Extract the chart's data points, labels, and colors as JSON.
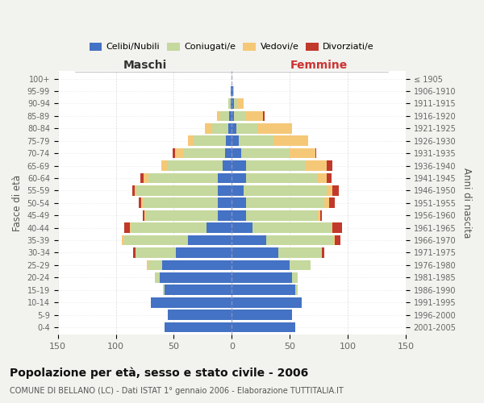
{
  "age_groups": [
    "0-4",
    "5-9",
    "10-14",
    "15-19",
    "20-24",
    "25-29",
    "30-34",
    "35-39",
    "40-44",
    "45-49",
    "50-54",
    "55-59",
    "60-64",
    "65-69",
    "70-74",
    "75-79",
    "80-84",
    "85-89",
    "90-94",
    "95-99",
    "100+"
  ],
  "birth_years": [
    "2001-2005",
    "1996-2000",
    "1991-1995",
    "1986-1990",
    "1981-1985",
    "1976-1980",
    "1971-1975",
    "1966-1970",
    "1961-1965",
    "1956-1960",
    "1951-1955",
    "1946-1950",
    "1941-1945",
    "1936-1940",
    "1931-1935",
    "1926-1930",
    "1921-1925",
    "1916-1920",
    "1911-1915",
    "1906-1910",
    "≤ 1905"
  ],
  "male": {
    "celibe": [
      58,
      55,
      70,
      58,
      62,
      60,
      48,
      38,
      22,
      12,
      12,
      12,
      12,
      8,
      6,
      5,
      3,
      2,
      1,
      1,
      0
    ],
    "coniugato": [
      0,
      0,
      0,
      1,
      4,
      12,
      35,
      55,
      65,
      62,
      65,
      70,
      60,
      48,
      35,
      28,
      14,
      8,
      2,
      0,
      0
    ],
    "vedovo": [
      0,
      0,
      0,
      0,
      0,
      1,
      0,
      2,
      1,
      1,
      1,
      2,
      4,
      5,
      8,
      5,
      6,
      3,
      0,
      0,
      0
    ],
    "divorziato": [
      0,
      0,
      0,
      0,
      0,
      0,
      2,
      0,
      5,
      2,
      2,
      2,
      3,
      0,
      2,
      0,
      0,
      0,
      0,
      0,
      0
    ]
  },
  "female": {
    "nubile": [
      55,
      52,
      60,
      55,
      52,
      50,
      40,
      30,
      18,
      12,
      12,
      10,
      12,
      12,
      8,
      6,
      4,
      2,
      2,
      1,
      0
    ],
    "coniugata": [
      0,
      0,
      0,
      2,
      5,
      18,
      38,
      58,
      68,
      62,
      68,
      72,
      62,
      52,
      42,
      30,
      18,
      10,
      3,
      0,
      0
    ],
    "vedova": [
      0,
      0,
      0,
      0,
      0,
      0,
      0,
      1,
      1,
      2,
      4,
      5,
      8,
      18,
      22,
      30,
      30,
      15,
      5,
      1,
      0
    ],
    "divorziata": [
      0,
      0,
      0,
      0,
      0,
      0,
      2,
      5,
      8,
      2,
      5,
      5,
      4,
      5,
      1,
      0,
      0,
      1,
      0,
      0,
      0
    ]
  },
  "colors": {
    "celibe_nubile": "#4472C4",
    "coniugato_a": "#c5d89d",
    "vedovo_a": "#f5c878",
    "divorziato_a": "#c0392b"
  },
  "xlim": 150,
  "title": "Popolazione per età, sesso e stato civile - 2006",
  "subtitle": "COMUNE DI BELLANO (LC) - Dati ISTAT 1° gennaio 2006 - Elaborazione TUTTITALIA.IT",
  "ylabel_left": "Fasce di età",
  "ylabel_right": "Anni di nascita",
  "xlabel_male": "Maschi",
  "xlabel_female": "Femmine",
  "legend_labels": [
    "Celibi/Nubili",
    "Coniugati/e",
    "Vedovi/e",
    "Divorziati/e"
  ],
  "bg_color": "#f2f2ee",
  "plot_bg": "#ffffff"
}
